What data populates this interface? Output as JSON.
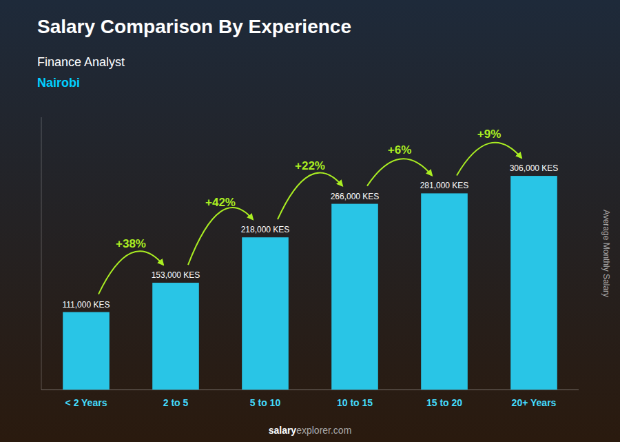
{
  "chart_data": {
    "type": "bar",
    "title": "Salary Comparison By Experience",
    "subtitle": [
      "Finance Analyst",
      "Nairobi"
    ],
    "ylabel": "Average Monthly Salary",
    "categories": [
      "< 2 Years",
      "2 to 5",
      "5 to 10",
      "10 to 15",
      "15 to 20",
      "20+ Years"
    ],
    "values": [
      111000,
      153000,
      218000,
      266000,
      281000,
      306000
    ],
    "value_labels": [
      "111,000 KES",
      "153,000 KES",
      "218,000 KES",
      "266,000 KES",
      "281,000 KES",
      "306,000 KES"
    ],
    "data_labels": true,
    "annotations": [
      "+38%",
      "+42%",
      "+22%",
      "+6%",
      "+9%"
    ],
    "footer": [
      "salary",
      "explorer.com"
    ],
    "color": "#29c5e6",
    "ylim": [
      0,
      390000
    ],
    "grid": false,
    "tick_labels": "x"
  }
}
